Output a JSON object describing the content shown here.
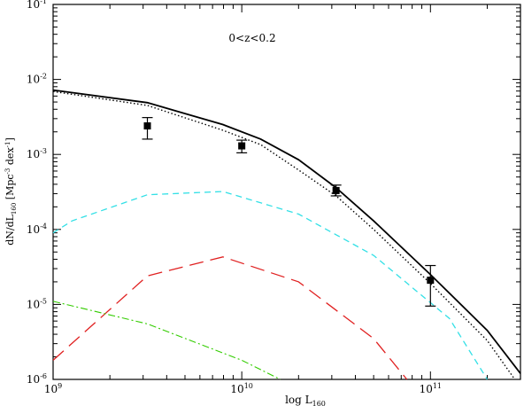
{
  "chart_data": {
    "type": "line",
    "annotation": "0<z<0.2",
    "xlabel": {
      "base": "log L",
      "sub": "160"
    },
    "ylabel": {
      "p1": "dN/dL",
      "sub": "160",
      "p2": " [Mpc",
      "sup": "-3",
      "p3": " dex",
      "sup2": "-1",
      "p4": "]"
    },
    "x_scale": "log",
    "y_scale": "log",
    "xlim": [
      1000000000.0,
      300000000000.0
    ],
    "ylim": [
      1e-06,
      0.1
    ],
    "x_ticks": [
      {
        "value": 1000000000.0,
        "base": "10",
        "exp": "9"
      },
      {
        "value": 10000000000.0,
        "base": "10",
        "exp": "10"
      },
      {
        "value": 100000000000.0,
        "base": "10",
        "exp": "11"
      }
    ],
    "y_ticks": [
      {
        "value": 1e-06,
        "base": "10",
        "exp": "-6"
      },
      {
        "value": 1e-05,
        "base": "10",
        "exp": "-5"
      },
      {
        "value": 0.0001,
        "base": "10",
        "exp": "-4"
      },
      {
        "value": 0.001,
        "base": "10",
        "exp": "-3"
      },
      {
        "value": 0.01,
        "base": "10",
        "exp": "-2"
      },
      {
        "value": 0.1,
        "base": "10",
        "exp": "-1"
      }
    ],
    "series": [
      {
        "style": "solid",
        "color": "#000000",
        "points": [
          [
            1000000000.0,
            0.0072
          ],
          [
            3160000000.0,
            0.0049
          ],
          [
            7940000000.0,
            0.0025
          ],
          [
            12600000000.0,
            0.0016
          ],
          [
            20000000000.0,
            0.00085
          ],
          [
            31600000000.0,
            0.00036
          ],
          [
            50000000000.0,
            0.00013
          ],
          [
            100000000000.0,
            2.5e-05
          ],
          [
            200000000000.0,
            4.5e-06
          ],
          [
            300000000000.0,
            1.2e-06
          ]
        ]
      },
      {
        "style": "dotted",
        "color": "#000000",
        "points": [
          [
            1000000000.0,
            0.0069
          ],
          [
            3160000000.0,
            0.0045
          ],
          [
            7940000000.0,
            0.0021
          ],
          [
            12600000000.0,
            0.00135
          ],
          [
            20000000000.0,
            0.00062
          ],
          [
            31600000000.0,
            0.00028
          ],
          [
            50000000000.0,
            0.0001
          ],
          [
            100000000000.0,
            1.9e-05
          ],
          [
            200000000000.0,
            3.3e-06
          ],
          [
            280000000000.0,
            1e-06
          ]
        ]
      },
      {
        "style": "dashed",
        "color": "#33e0e6",
        "points": [
          [
            1000000000.0,
            9e-05
          ],
          [
            1260000000.0,
            0.00013
          ],
          [
            3160000000.0,
            0.00029
          ],
          [
            7940000000.0,
            0.00032
          ],
          [
            20000000000.0,
            0.00016
          ],
          [
            50000000000.0,
            4.5e-05
          ],
          [
            126000000000.0,
            6.5e-06
          ],
          [
            200000000000.0,
            1e-06
          ]
        ]
      },
      {
        "style": "longdash",
        "color": "#e02020",
        "points": [
          [
            1000000000.0,
            1.8e-06
          ],
          [
            3160000000.0,
            2.4e-05
          ],
          [
            7940000000.0,
            4.3e-05
          ],
          [
            20000000000.0,
            2e-05
          ],
          [
            50000000000.0,
            3.5e-06
          ],
          [
            75000000000.0,
            1e-06
          ]
        ]
      },
      {
        "style": "dashdot",
        "color": "#33cc00",
        "points": [
          [
            1000000000.0,
            1.1e-05
          ],
          [
            3160000000.0,
            5.5e-06
          ],
          [
            10000000000.0,
            1.8e-06
          ],
          [
            16000000000.0,
            1e-06
          ]
        ]
      }
    ],
    "data_points": [
      {
        "x": 3160000000.0,
        "y": 0.0024,
        "ylo": 0.0016,
        "yhi": 0.0031
      },
      {
        "x": 10000000000.0,
        "y": 0.0013,
        "ylo": 0.00105,
        "yhi": 0.00155
      },
      {
        "x": 31600000000.0,
        "y": 0.00033,
        "ylo": 0.00028,
        "yhi": 0.00039
      },
      {
        "x": 100000000000.0,
        "y": 2.1e-05,
        "ylo": 9.5e-06,
        "yhi": 3.3e-05
      }
    ]
  }
}
